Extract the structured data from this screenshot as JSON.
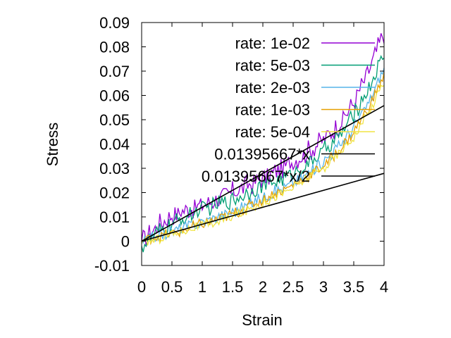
{
  "chart_data": {
    "type": "line",
    "title": "",
    "xlabel": "Strain",
    "ylabel": "Stress",
    "xlim": [
      0,
      4
    ],
    "ylim": [
      -0.01,
      0.09
    ],
    "x_ticks": [
      "0",
      "0.5",
      "1",
      "1.5",
      "2",
      "2.5",
      "3",
      "3.5",
      "4"
    ],
    "y_ticks": [
      "-0.01",
      "0",
      "0.01",
      "0.02",
      "0.03",
      "0.04",
      "0.05",
      "0.06",
      "0.07",
      "0.08",
      "0.09"
    ],
    "grid": false,
    "legend_position": "top-right",
    "series": [
      {
        "name": "rate: 1e-02",
        "color": "#9400d3",
        "x": [
          0,
          0.25,
          0.5,
          0.75,
          1,
          1.25,
          1.5,
          1.75,
          2,
          2.25,
          2.5,
          2.75,
          3,
          3.25,
          3.5,
          3.75,
          4
        ],
        "y": [
          0.0,
          0.006,
          0.011,
          0.013,
          0.015,
          0.017,
          0.02,
          0.023,
          0.026,
          0.029,
          0.033,
          0.037,
          0.042,
          0.048,
          0.057,
          0.07,
          0.086
        ]
      },
      {
        "name": "rate: 5e-03",
        "color": "#009e73",
        "x": [
          0,
          0.25,
          0.5,
          0.75,
          1,
          1.25,
          1.5,
          1.75,
          2,
          2.25,
          2.5,
          2.75,
          3,
          3.25,
          3.5,
          3.75,
          4
        ],
        "y": [
          -0.002,
          0.003,
          0.007,
          0.01,
          0.013,
          0.015,
          0.017,
          0.02,
          0.023,
          0.025,
          0.028,
          0.032,
          0.037,
          0.043,
          0.052,
          0.063,
          0.077
        ]
      },
      {
        "name": "rate: 2e-03",
        "color": "#56b4e9",
        "x": [
          0,
          0.25,
          0.5,
          0.75,
          1,
          1.25,
          1.5,
          1.75,
          2,
          2.25,
          2.5,
          2.75,
          3,
          3.25,
          3.5,
          3.75,
          4
        ],
        "y": [
          0.0,
          0.002,
          0.004,
          0.006,
          0.008,
          0.01,
          0.012,
          0.015,
          0.018,
          0.021,
          0.024,
          0.028,
          0.033,
          0.039,
          0.047,
          0.057,
          0.071
        ]
      },
      {
        "name": "rate: 1e-03",
        "color": "#e69f00",
        "x": [
          0,
          0.25,
          0.5,
          0.75,
          1,
          1.25,
          1.5,
          1.75,
          2,
          2.25,
          2.5,
          2.75,
          3,
          3.25,
          3.5,
          3.75,
          4
        ],
        "y": [
          0.0,
          0.002,
          0.003,
          0.005,
          0.007,
          0.009,
          0.011,
          0.014,
          0.017,
          0.02,
          0.023,
          0.027,
          0.031,
          0.037,
          0.045,
          0.055,
          0.068
        ]
      },
      {
        "name": "rate: 5e-04",
        "color": "#f0e442",
        "x": [
          0,
          0.25,
          0.5,
          0.75,
          1,
          1.25,
          1.5,
          1.75,
          2,
          2.25,
          2.5,
          2.75,
          3,
          3.25,
          3.5,
          3.75,
          4
        ],
        "y": [
          -0.001,
          0.001,
          0.003,
          0.005,
          0.006,
          0.008,
          0.01,
          0.013,
          0.016,
          0.019,
          0.022,
          0.026,
          0.03,
          0.036,
          0.043,
          0.053,
          0.066
        ]
      },
      {
        "name": "0.01395667*x",
        "color": "#000000",
        "x": [
          0,
          4
        ],
        "y": [
          0,
          0.05582668
        ]
      },
      {
        "name": "0.01395667*x/2",
        "color": "#000000",
        "x": [
          0,
          4
        ],
        "y": [
          0,
          0.02791334
        ]
      }
    ]
  }
}
